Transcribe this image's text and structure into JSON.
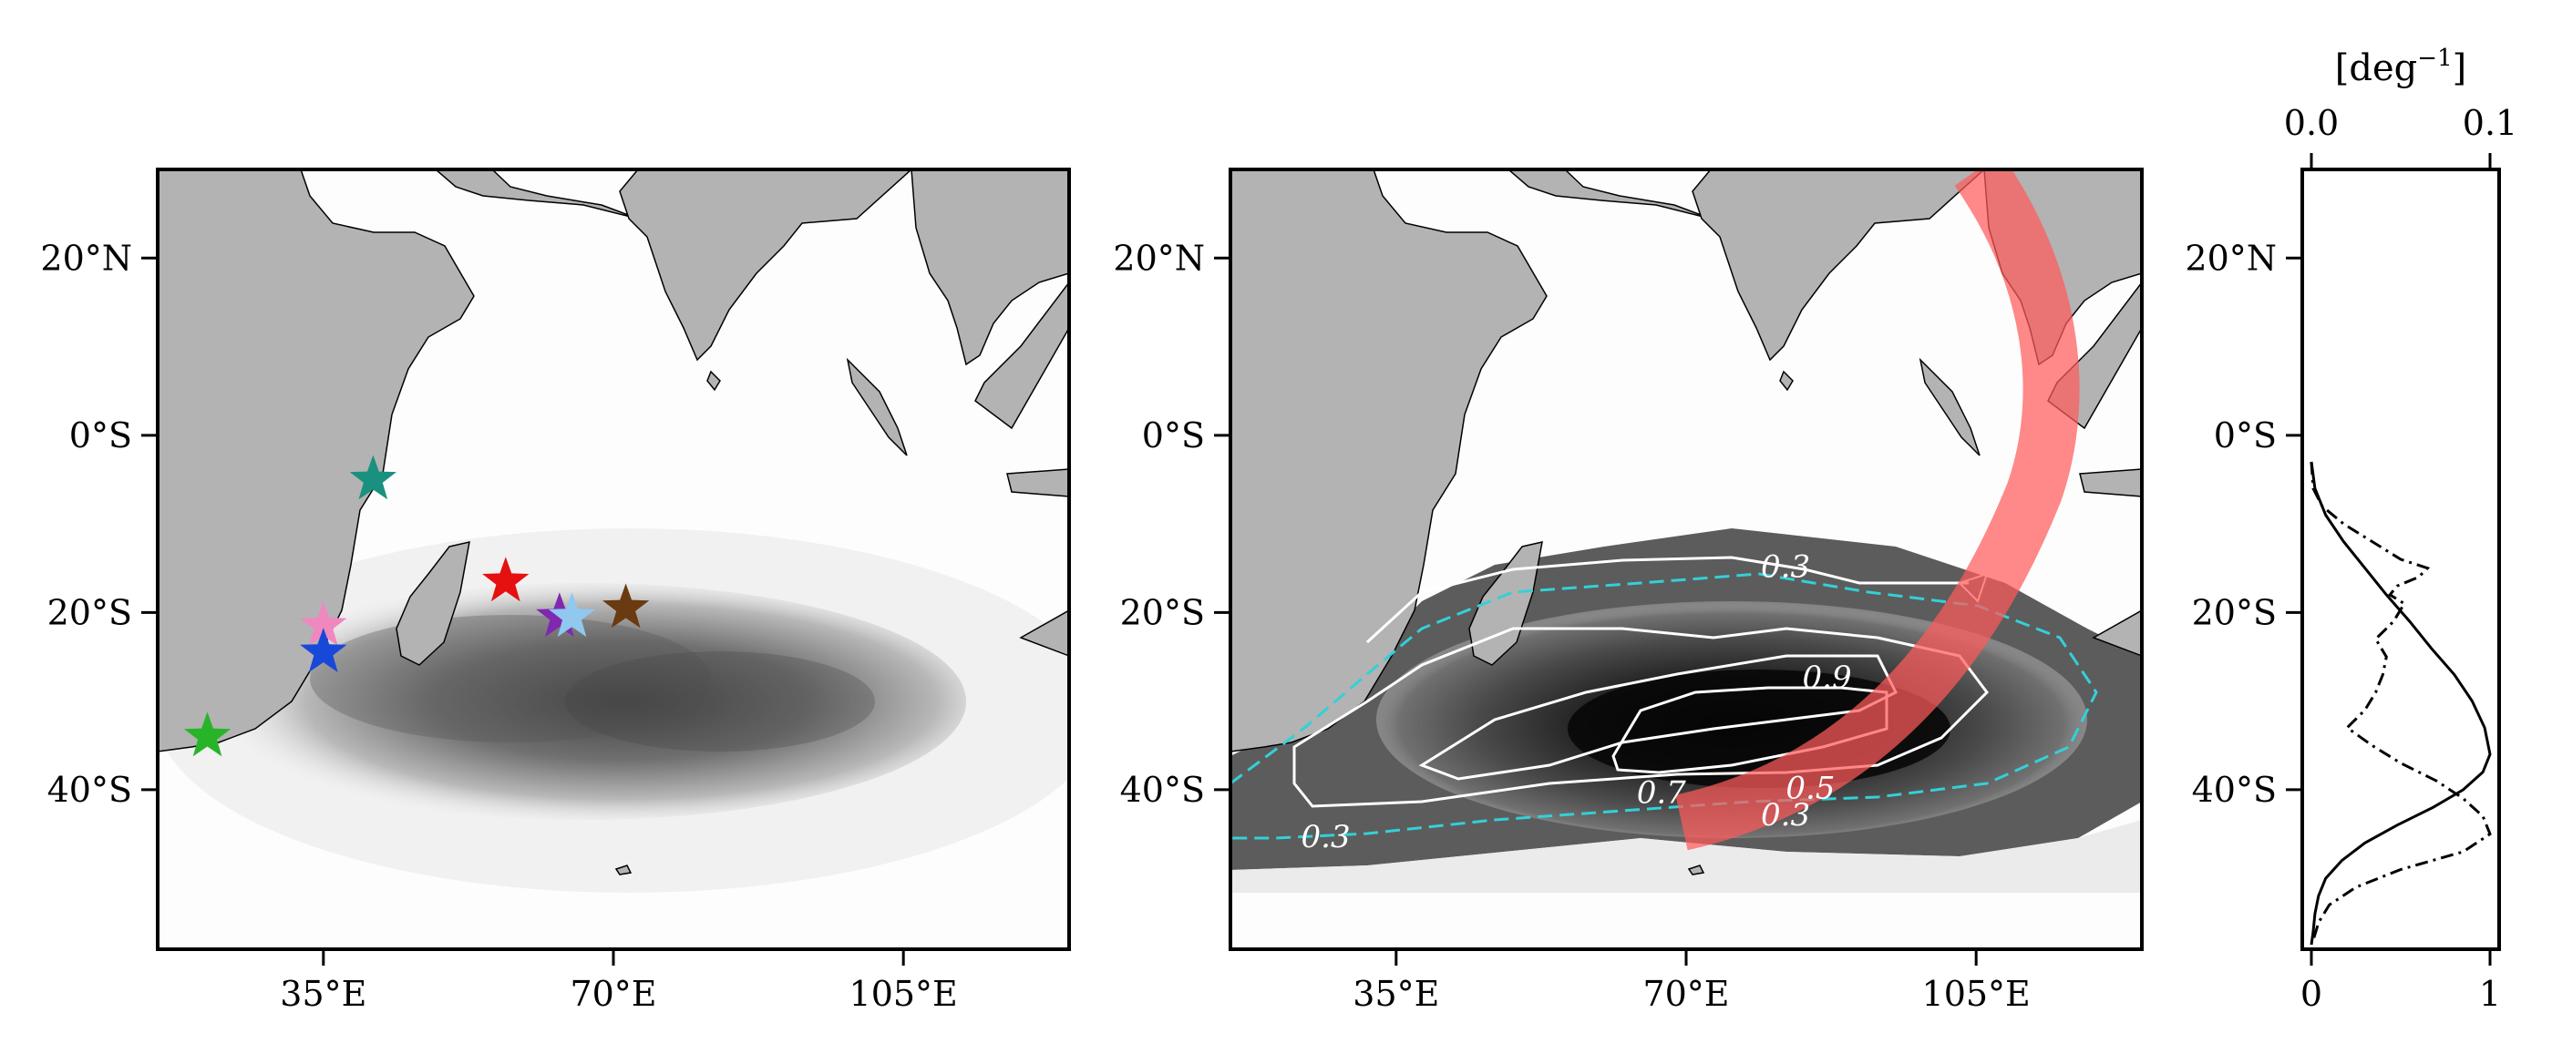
{
  "chart_data": [
    {
      "type": "heatmap",
      "title": "",
      "xlabel": "",
      "ylabel": "",
      "xlim": [
        15,
        125
      ],
      "ylim": [
        -58,
        30
      ],
      "x_ticks": [
        35,
        70,
        105
      ],
      "x_tick_labels": [
        "35°E",
        "70°E",
        "105°E"
      ],
      "y_ticks": [
        20,
        0,
        -20,
        -40
      ],
      "y_tick_labels": [
        "20°N",
        "0°S",
        "20°S",
        "40°S"
      ],
      "markers": [
        {
          "lon": 41,
          "lat": -5,
          "color": "#1a9080"
        },
        {
          "lon": 57,
          "lat": -16.5,
          "color": "#e51010"
        },
        {
          "lon": 35,
          "lat": -21.5,
          "color": "#f088c0"
        },
        {
          "lon": 35,
          "lat": -24.5,
          "color": "#1848d8"
        },
        {
          "lon": 21,
          "lat": -34,
          "color": "#28b428"
        },
        {
          "lon": 63.5,
          "lat": -20.5,
          "color": "#8028b0"
        },
        {
          "lon": 65,
          "lat": -20.5,
          "color": "#90c8f0"
        },
        {
          "lon": 71.5,
          "lat": -19.5,
          "color": "#6a3a10"
        }
      ]
    },
    {
      "type": "heatmap",
      "title": "",
      "xlabel": "",
      "ylabel": "",
      "xlim": [
        15,
        125
      ],
      "ylim": [
        -58,
        30
      ],
      "x_ticks": [
        35,
        70,
        105
      ],
      "x_tick_labels": [
        "35°E",
        "70°E",
        "105°E"
      ],
      "y_ticks": [
        20,
        0,
        -20,
        -40
      ],
      "y_tick_labels": [
        "20°N",
        "0°S",
        "20°S",
        "40°S"
      ],
      "contour_labels": [
        {
          "text": "0.3",
          "lon": 82,
          "lat": -16
        },
        {
          "text": "0.9",
          "lon": 87,
          "lat": -28.5
        },
        {
          "text": "0.7",
          "lon": 67,
          "lat": -41.5
        },
        {
          "text": "0.5",
          "lon": 85,
          "lat": -41
        },
        {
          "text": "0.3",
          "lon": 82,
          "lat": -44
        },
        {
          "text": "0.3",
          "lon": 26.5,
          "lat": -46.5
        }
      ],
      "band_color": "#ff5a5a"
    },
    {
      "type": "line",
      "title": "",
      "xlabel": "",
      "x2label": "[deg",
      "x2label_sup": "−1",
      "x2label_end": "]",
      "xlim": [
        0,
        1
      ],
      "x_ticks": [
        0,
        1
      ],
      "x_tick_labels": [
        "0",
        "1"
      ],
      "x2lim": [
        0,
        0.1
      ],
      "x2_ticks": [
        0,
        0.1
      ],
      "x2_tick_labels": [
        "0.0",
        "0.1"
      ],
      "ylim": [
        -58,
        30
      ],
      "y_ticks": [
        20,
        0,
        -20,
        -40
      ],
      "y_tick_labels": [
        "20°N",
        "0°S",
        "20°S",
        "40°S"
      ],
      "series": [
        {
          "style": "solid",
          "y": [
            -3,
            -6,
            -9,
            -12,
            -15,
            -18,
            -21,
            -24,
            -27,
            -30,
            -33,
            -36,
            -38,
            -40,
            -42,
            -44,
            -46,
            -48,
            -50,
            -52,
            -54,
            -56,
            -57.5
          ],
          "x": [
            0.0,
            0.02,
            0.08,
            0.18,
            0.3,
            0.42,
            0.55,
            0.67,
            0.8,
            0.9,
            0.97,
            1.0,
            0.96,
            0.85,
            0.68,
            0.48,
            0.3,
            0.17,
            0.08,
            0.04,
            0.02,
            0.01,
            0.0
          ]
        },
        {
          "style": "dashdot",
          "y": [
            -3,
            -6,
            -8,
            -10,
            -12,
            -14,
            -15,
            -16,
            -17,
            -18,
            -19,
            -21,
            -23,
            -25,
            -27,
            -29,
            -31,
            -33,
            -35,
            -37,
            -39,
            -41,
            -43,
            -45,
            -47,
            -49,
            -51,
            -53,
            -55,
            -57
          ],
          "x": [
            0.0,
            0.01,
            0.06,
            0.18,
            0.34,
            0.5,
            0.65,
            0.6,
            0.48,
            0.44,
            0.52,
            0.46,
            0.36,
            0.42,
            0.4,
            0.36,
            0.3,
            0.2,
            0.34,
            0.5,
            0.7,
            0.85,
            0.96,
            1.0,
            0.85,
            0.5,
            0.25,
            0.1,
            0.04,
            0.01
          ]
        }
      ]
    }
  ]
}
